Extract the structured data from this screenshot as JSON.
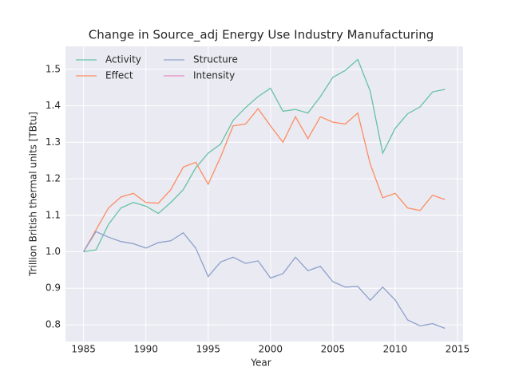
{
  "chart_data": {
    "type": "line",
    "title": "Change in Source_adj Energy Use Industry Manufacturing",
    "xlabel": "Year",
    "ylabel": "Trillion British thermal units [TBtu]",
    "x": [
      1985,
      1986,
      1987,
      1988,
      1989,
      1990,
      1991,
      1992,
      1993,
      1994,
      1995,
      1996,
      1997,
      1998,
      1999,
      2000,
      2001,
      2002,
      2003,
      2004,
      2005,
      2006,
      2007,
      2008,
      2009,
      2010,
      2011,
      2012,
      2013,
      2014
    ],
    "series": [
      {
        "name": "Activity",
        "color": "#66c2a5",
        "values": [
          1.0,
          1.005,
          1.075,
          1.12,
          1.135,
          1.125,
          1.105,
          1.135,
          1.17,
          1.23,
          1.27,
          1.295,
          1.36,
          1.395,
          1.425,
          1.448,
          1.385,
          1.39,
          1.38,
          1.425,
          1.478,
          1.497,
          1.527,
          1.44,
          1.27,
          1.338,
          1.378,
          1.397,
          1.438,
          1.445
        ]
      },
      {
        "name": "Effect",
        "color": "#fc8d62",
        "values": [
          1.0,
          1.06,
          1.12,
          1.15,
          1.16,
          1.135,
          1.133,
          1.17,
          1.232,
          1.245,
          1.185,
          1.26,
          1.345,
          1.35,
          1.392,
          1.345,
          1.3,
          1.37,
          1.31,
          1.37,
          1.355,
          1.35,
          1.38,
          1.24,
          1.148,
          1.16,
          1.12,
          1.113,
          1.155,
          1.143
        ]
      },
      {
        "name": "Structure",
        "color": "#8da0cb",
        "values": [
          1.0,
          1.055,
          1.04,
          1.028,
          1.022,
          1.01,
          1.025,
          1.03,
          1.052,
          1.01,
          0.932,
          0.972,
          0.985,
          0.968,
          0.975,
          0.928,
          0.94,
          0.985,
          0.948,
          0.96,
          0.918,
          0.903,
          0.905,
          0.867,
          0.903,
          0.868,
          0.813,
          0.797,
          0.803,
          0.79
        ]
      },
      {
        "name": "Intensity",
        "color": "#e78ac3",
        "values": [
          null,
          null,
          null,
          null,
          null,
          null,
          null,
          null,
          null,
          null,
          null,
          null,
          null,
          null,
          null,
          null,
          null,
          null,
          null,
          null,
          null,
          null,
          null,
          null,
          null,
          null,
          null,
          null,
          null,
          null
        ]
      }
    ],
    "xlim": [
      1983.55,
      2015.45
    ],
    "xticks": [
      1985,
      1990,
      1995,
      2000,
      2005,
      2010,
      2015
    ],
    "ylim": [
      0.754,
      1.563
    ],
    "yticks": [
      0.8,
      0.9,
      {
        "value": 1,
        "label": "1.0"
      },
      1.1,
      1.2,
      1.3,
      1.4,
      1.5
    ],
    "grid": true,
    "legend": "upper left"
  }
}
